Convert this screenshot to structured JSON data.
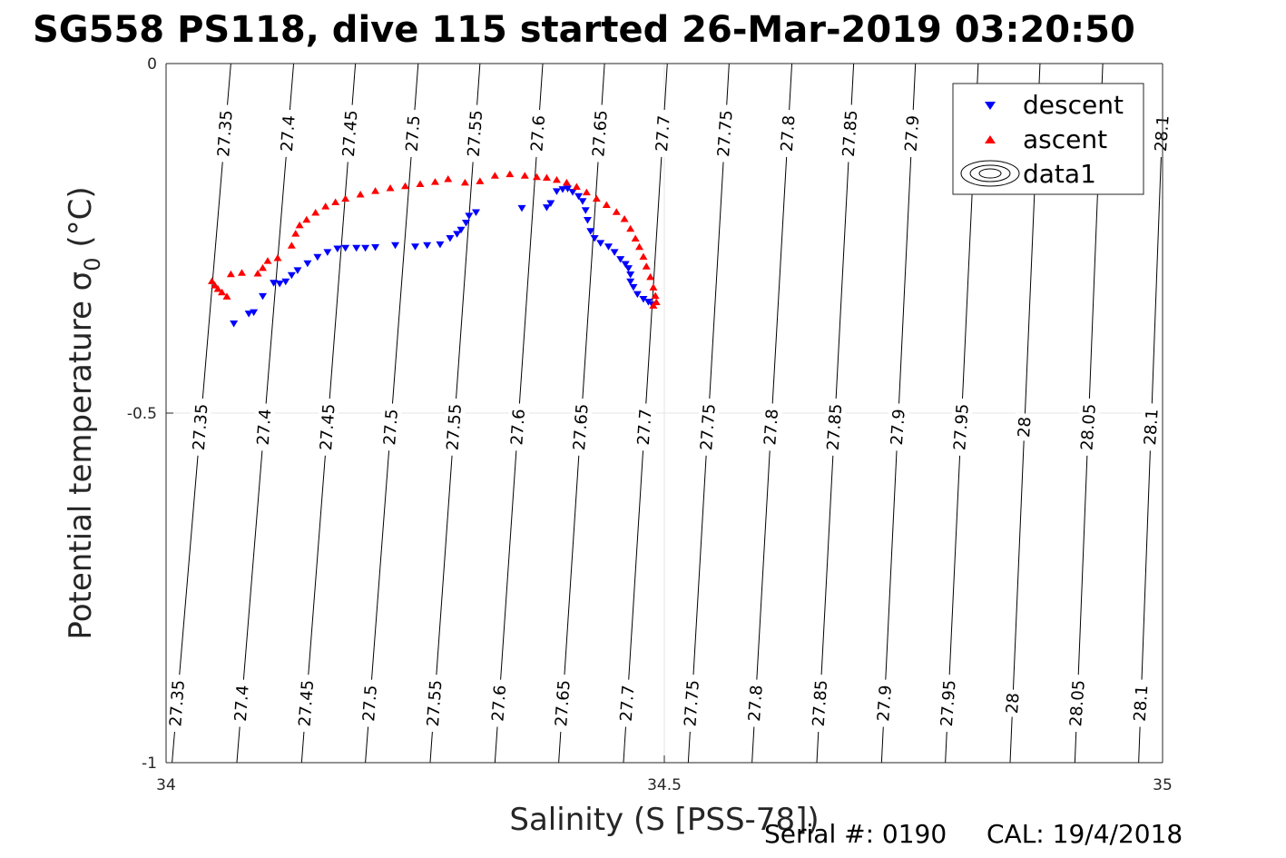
{
  "chart_data": {
    "type": "scatter",
    "title": "SG558 PS118, dive 115 started 26-Mar-2019 03:20:50",
    "xlabel": "Salinity (S [PSS-78])",
    "ylabel": "Potential temperature σ",
    "ylabel_sub": "0",
    "ylabel_unit": " (°C)",
    "xlim": [
      34,
      35
    ],
    "ylim": [
      -1,
      0
    ],
    "xticks": [
      34,
      34.5,
      35
    ],
    "xtick_labels": [
      "34",
      "34.5",
      "35"
    ],
    "yticks": [
      0,
      -0.5,
      -1
    ],
    "ytick_labels": [
      "0",
      "-0.5",
      "-1"
    ],
    "grid": true,
    "legend_position": "top-right",
    "legend": [
      "descent",
      "ascent",
      "data1"
    ],
    "series": [
      {
        "name": "descent",
        "color": "#0000ff",
        "marker": "triangle-down",
        "points": [
          [
            34.068,
            -0.372
          ],
          [
            34.083,
            -0.358
          ],
          [
            34.088,
            -0.356
          ],
          [
            34.097,
            -0.333
          ],
          [
            34.108,
            -0.314
          ],
          [
            34.114,
            -0.315
          ],
          [
            34.12,
            -0.312
          ],
          [
            34.126,
            -0.303
          ],
          [
            34.132,
            -0.296
          ],
          [
            34.142,
            -0.286
          ],
          [
            34.152,
            -0.277
          ],
          [
            34.162,
            -0.27
          ],
          [
            34.172,
            -0.265
          ],
          [
            34.18,
            -0.264
          ],
          [
            34.191,
            -0.264
          ],
          [
            34.2,
            -0.264
          ],
          [
            34.21,
            -0.263
          ],
          [
            34.23,
            -0.26
          ],
          [
            34.25,
            -0.262
          ],
          [
            34.262,
            -0.26
          ],
          [
            34.275,
            -0.259
          ],
          [
            34.285,
            -0.25
          ],
          [
            34.292,
            -0.244
          ],
          [
            34.296,
            -0.238
          ],
          [
            34.301,
            -0.228
          ],
          [
            34.304,
            -0.218
          ],
          [
            34.311,
            -0.213
          ],
          [
            34.357,
            -0.207
          ],
          [
            34.382,
            -0.206
          ],
          [
            34.386,
            -0.2
          ],
          [
            34.392,
            -0.183
          ],
          [
            34.398,
            -0.18
          ],
          [
            34.403,
            -0.179
          ],
          [
            34.408,
            -0.184
          ],
          [
            34.414,
            -0.19
          ],
          [
            34.418,
            -0.197
          ],
          [
            34.421,
            -0.21
          ],
          [
            34.423,
            -0.224
          ],
          [
            34.426,
            -0.24
          ],
          [
            34.43,
            -0.25
          ],
          [
            34.436,
            -0.257
          ],
          [
            34.444,
            -0.262
          ],
          [
            34.45,
            -0.27
          ],
          [
            34.456,
            -0.28
          ],
          [
            34.461,
            -0.287
          ],
          [
            34.464,
            -0.293
          ],
          [
            34.466,
            -0.302
          ],
          [
            34.466,
            -0.312
          ],
          [
            34.469,
            -0.32
          ],
          [
            34.473,
            -0.33
          ],
          [
            34.479,
            -0.337
          ],
          [
            34.484,
            -0.341
          ],
          [
            34.488,
            -0.345
          ]
        ]
      },
      {
        "name": "ascent",
        "color": "#ff0000",
        "marker": "triangle-up",
        "points": [
          [
            34.046,
            -0.311
          ],
          [
            34.049,
            -0.317
          ],
          [
            34.052,
            -0.322
          ],
          [
            34.056,
            -0.327
          ],
          [
            34.061,
            -0.333
          ],
          [
            34.065,
            -0.301
          ],
          [
            34.076,
            -0.299
          ],
          [
            34.092,
            -0.3
          ],
          [
            34.097,
            -0.292
          ],
          [
            34.102,
            -0.282
          ],
          [
            34.112,
            -0.278
          ],
          [
            34.126,
            -0.26
          ],
          [
            34.13,
            -0.243
          ],
          [
            34.134,
            -0.231
          ],
          [
            34.141,
            -0.223
          ],
          [
            34.15,
            -0.213
          ],
          [
            34.16,
            -0.204
          ],
          [
            34.17,
            -0.198
          ],
          [
            34.18,
            -0.193
          ],
          [
            34.195,
            -0.187
          ],
          [
            34.21,
            -0.182
          ],
          [
            34.225,
            -0.178
          ],
          [
            34.24,
            -0.175
          ],
          [
            34.255,
            -0.172
          ],
          [
            34.27,
            -0.169
          ],
          [
            34.283,
            -0.165
          ],
          [
            34.3,
            -0.17
          ],
          [
            34.315,
            -0.168
          ],
          [
            34.33,
            -0.16
          ],
          [
            34.345,
            -0.158
          ],
          [
            34.36,
            -0.16
          ],
          [
            34.372,
            -0.162
          ],
          [
            34.382,
            -0.163
          ],
          [
            34.392,
            -0.166
          ],
          [
            34.402,
            -0.17
          ],
          [
            34.412,
            -0.176
          ],
          [
            34.422,
            -0.184
          ],
          [
            34.432,
            -0.193
          ],
          [
            34.442,
            -0.202
          ],
          [
            34.452,
            -0.212
          ],
          [
            34.46,
            -0.222
          ],
          [
            34.466,
            -0.236
          ],
          [
            34.471,
            -0.25
          ],
          [
            34.475,
            -0.262
          ],
          [
            34.479,
            -0.276
          ],
          [
            34.482,
            -0.29
          ],
          [
            34.486,
            -0.305
          ],
          [
            34.489,
            -0.32
          ],
          [
            34.491,
            -0.332
          ],
          [
            34.492,
            -0.341
          ],
          [
            34.489,
            -0.346
          ]
        ]
      }
    ],
    "density_contours": {
      "levels": [
        27.35,
        27.4,
        27.45,
        27.5,
        27.55,
        27.6,
        27.65,
        27.7,
        27.75,
        27.8,
        27.85,
        27.9,
        27.95,
        28,
        28.05,
        28.1
      ],
      "labels": [
        "27.35",
        "27.4",
        "27.45",
        "27.5",
        "27.55",
        "27.6",
        "27.65",
        "27.7",
        "27.75",
        "27.8",
        "27.85",
        "27.9",
        "27.95",
        "28",
        "28.05",
        "28.1"
      ],
      "salinity_at_top": [
        34.065,
        34.128,
        34.19,
        34.253,
        34.315,
        34.378,
        34.44,
        34.503,
        34.565,
        34.628,
        34.69,
        34.752,
        34.815,
        34.877,
        34.94,
        35.002
      ],
      "salinity_at_bottom": [
        34.006,
        34.071,
        34.136,
        34.2,
        34.265,
        34.33,
        34.394,
        34.459,
        34.524,
        34.588,
        34.653,
        34.718,
        34.782,
        34.847,
        34.912,
        34.976
      ],
      "label_rows": [
        {
          "y": -0.1,
          "levels": [
            "27.35",
            "27.4",
            "27.45",
            "27.5",
            "27.55",
            "27.6",
            "27.65",
            "27.7",
            "27.75",
            "27.8",
            "27.85",
            "27.9",
            "28.1"
          ]
        },
        {
          "y": -0.52,
          "levels": [
            "27.35",
            "27.4",
            "27.45",
            "27.5",
            "27.55",
            "27.6",
            "27.65",
            "27.7",
            "27.75",
            "27.8",
            "27.85",
            "27.9",
            "27.95",
            "28",
            "28.05",
            "28.1"
          ]
        },
        {
          "y": -0.915,
          "levels": [
            "27.35",
            "27.4",
            "27.45",
            "27.5",
            "27.55",
            "27.6",
            "27.65",
            "27.7",
            "27.75",
            "27.8",
            "27.85",
            "27.9",
            "27.95",
            "28",
            "28.05",
            "28.1"
          ]
        }
      ]
    }
  },
  "footer": {
    "serial_label": "Serial #: 0190",
    "cal_label": "CAL: 19/4/2018"
  }
}
